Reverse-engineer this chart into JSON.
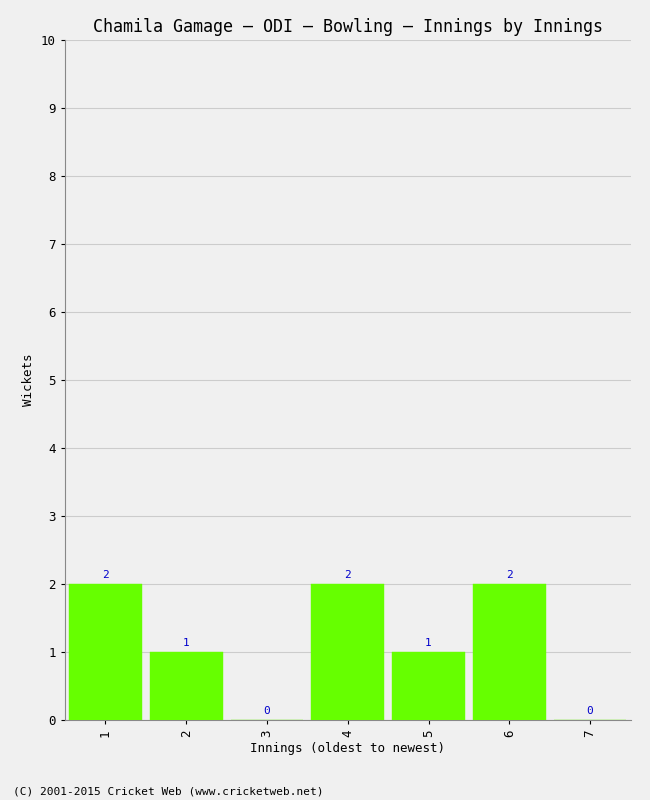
{
  "title": "Chamila Gamage — ODI — Bowling — Innings by Innings",
  "xlabel": "Innings (oldest to newest)",
  "ylabel": "Wickets",
  "innings": [
    1,
    2,
    3,
    4,
    5,
    6,
    7
  ],
  "wickets": [
    2,
    1,
    0,
    2,
    1,
    2,
    0
  ],
  "bar_color": "#66ff00",
  "bar_edge_color": "#66ff00",
  "label_color": "#0000cc",
  "ylim": [
    0,
    10
  ],
  "xlim": [
    0.5,
    7.5
  ],
  "yticks": [
    0,
    1,
    2,
    3,
    4,
    5,
    6,
    7,
    8,
    9,
    10
  ],
  "xticks": [
    1,
    2,
    3,
    4,
    5,
    6,
    7
  ],
  "title_fontsize": 12,
  "axis_label_fontsize": 9,
  "tick_label_fontsize": 9,
  "value_label_fontsize": 8,
  "footer": "(C) 2001-2015 Cricket Web (www.cricketweb.net)",
  "background_color": "#f0f0f0",
  "plot_bg_color": "#f0f0f0",
  "grid_color": "#cccccc",
  "font_family": "monospace"
}
